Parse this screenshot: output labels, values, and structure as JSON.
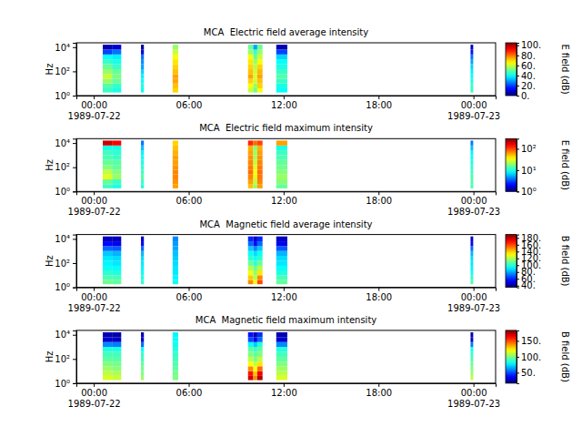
{
  "chart_data": [
    {
      "type": "heatmap",
      "title": "MCA  Electric field average intensity",
      "y_label": "Hz",
      "log": "y",
      "xlim": [
        "1989-07-21T22:54",
        "1989-07-23T01:24"
      ],
      "xticks": [
        {
          "value": "1989-07-22T00:00",
          "label": "00:00\n1989-07-22"
        },
        {
          "value": "1989-07-22T06:00",
          "label": "06:00"
        },
        {
          "value": "1989-07-22T12:00",
          "label": "12:00"
        },
        {
          "value": "1989-07-22T18:00",
          "label": "18:00"
        },
        {
          "value": "1989-07-23T00:00",
          "label": "00:00\n1989-07-23"
        }
      ],
      "ylim": [
        1,
        23000
      ],
      "yticks": [
        {
          "value": 1,
          "label": "10⁰"
        },
        {
          "value": 100,
          "label": "10²"
        },
        {
          "value": 10000,
          "label": "10⁴"
        }
      ],
      "x_start": [
        "1989-07-22T00:34",
        "1989-07-22T01:09",
        "1989-07-22T02:59",
        "1989-07-22T04:59",
        "1989-07-22T09:45",
        "1989-07-22T10:05",
        "1989-07-22T10:20",
        "1989-07-22T11:32",
        "1989-07-22T23:49"
      ],
      "x_end": [
        "1989-07-22T01:09",
        "1989-07-22T01:44",
        "1989-07-22T03:10",
        "1989-07-22T05:20",
        "1989-07-22T10:05",
        "1989-07-22T10:20",
        "1989-07-22T10:40",
        "1989-07-22T12:14",
        "1989-07-22T23:59"
      ],
      "y_edges": [
        1.8,
        4,
        10,
        25,
        60,
        150,
        400,
        1000,
        2500,
        6300,
        16000
      ],
      "cells": [
        [
          45,
          48,
          55,
          60,
          55,
          50,
          45,
          40,
          20,
          5
        ],
        [
          42,
          45,
          50,
          52,
          50,
          45,
          42,
          38,
          25,
          8
        ],
        [
          40,
          42,
          40,
          38,
          35,
          30,
          28,
          25,
          10,
          3
        ],
        [
          70,
          72,
          75,
          75,
          72,
          70,
          68,
          65,
          60,
          55
        ],
        [
          60,
          65,
          70,
          75,
          72,
          70,
          68,
          65,
          55,
          50
        ],
        [
          50,
          55,
          60,
          62,
          60,
          58,
          55,
          50,
          45,
          30
        ],
        [
          65,
          70,
          72,
          75,
          73,
          70,
          65,
          60,
          55,
          50
        ],
        [
          40,
          42,
          45,
          48,
          45,
          42,
          40,
          35,
          20,
          5
        ],
        [
          45,
          45,
          42,
          40,
          38,
          35,
          30,
          25,
          15,
          5
        ]
      ],
      "colorbar": {
        "label": "E field (dB)",
        "range": [
          0,
          105
        ],
        "ticks": [
          {
            "value": 0,
            "label": "0."
          },
          {
            "value": 20,
            "label": "20."
          },
          {
            "value": 40,
            "label": "40."
          },
          {
            "value": 60,
            "label": "60."
          },
          {
            "value": 80,
            "label": "80."
          },
          {
            "value": 100,
            "label": "100."
          }
        ]
      }
    },
    {
      "type": "heatmap",
      "title": "MCA  Electric field maximum intensity",
      "y_label": "Hz",
      "log": "y",
      "xlim": [
        "1989-07-21T22:54",
        "1989-07-23T01:24"
      ],
      "xticks": [
        {
          "value": "1989-07-22T00:00",
          "label": "00:00\n1989-07-22"
        },
        {
          "value": "1989-07-22T06:00",
          "label": "06:00"
        },
        {
          "value": "1989-07-22T12:00",
          "label": "12:00"
        },
        {
          "value": "1989-07-22T18:00",
          "label": "18:00"
        },
        {
          "value": "1989-07-23T00:00",
          "label": "00:00\n1989-07-23"
        }
      ],
      "ylim": [
        1,
        23000
      ],
      "yticks": [
        {
          "value": 1,
          "label": "10⁰"
        },
        {
          "value": 100,
          "label": "10²"
        },
        {
          "value": 10000,
          "label": "10⁴"
        }
      ],
      "x_start": [
        "1989-07-22T00:34",
        "1989-07-22T01:09",
        "1989-07-22T02:59",
        "1989-07-22T04:59",
        "1989-07-22T09:45",
        "1989-07-22T10:05",
        "1989-07-22T10:20",
        "1989-07-22T11:32",
        "1989-07-22T23:49"
      ],
      "x_end": [
        "1989-07-22T01:09",
        "1989-07-22T01:44",
        "1989-07-22T03:10",
        "1989-07-22T05:20",
        "1989-07-22T10:05",
        "1989-07-22T10:20",
        "1989-07-22T10:40",
        "1989-07-22T12:14",
        "1989-07-22T23:59"
      ],
      "y_edges": [
        1.8,
        4,
        10,
        25,
        60,
        150,
        400,
        1000,
        2500,
        6300,
        16000
      ],
      "cells": [
        [
          12,
          15,
          30,
          25,
          18,
          15,
          13,
          12,
          10,
          200
        ],
        [
          10,
          12,
          20,
          18,
          15,
          14,
          12,
          11,
          10,
          150
        ],
        [
          10,
          12,
          14,
          12,
          11,
          10,
          9,
          8,
          6,
          4
        ],
        [
          60,
          65,
          70,
          70,
          65,
          60,
          60,
          55,
          50,
          45
        ],
        [
          50,
          60,
          70,
          80,
          75,
          70,
          65,
          60,
          55,
          120
        ],
        [
          20,
          25,
          30,
          35,
          30,
          25,
          22,
          20,
          18,
          80
        ],
        [
          60,
          70,
          75,
          80,
          75,
          70,
          65,
          60,
          55,
          100
        ],
        [
          15,
          18,
          20,
          18,
          16,
          15,
          13,
          12,
          10,
          60
        ],
        [
          12,
          14,
          13,
          12,
          11,
          10,
          9,
          8,
          6,
          4
        ]
      ],
      "colorbar": {
        "label": "E field (dB)",
        "log": true,
        "range": [
          1,
          300
        ],
        "ticks": [
          {
            "value": 1,
            "label": "10⁰"
          },
          {
            "value": 10,
            "label": "10¹"
          },
          {
            "value": 100,
            "label": "10²"
          }
        ]
      }
    },
    {
      "type": "heatmap",
      "title": "MCA  Magnetic field average intensity",
      "y_label": "Hz",
      "log": "y",
      "xlim": [
        "1989-07-21T22:54",
        "1989-07-23T01:24"
      ],
      "xticks": [
        {
          "value": "1989-07-22T00:00",
          "label": "00:00\n1989-07-22"
        },
        {
          "value": "1989-07-22T06:00",
          "label": "06:00"
        },
        {
          "value": "1989-07-22T12:00",
          "label": "12:00"
        },
        {
          "value": "1989-07-22T18:00",
          "label": "18:00"
        },
        {
          "value": "1989-07-23T00:00",
          "label": "00:00\n1989-07-23"
        }
      ],
      "ylim": [
        1,
        23000
      ],
      "yticks": [
        {
          "value": 1,
          "label": "10⁰"
        },
        {
          "value": 100,
          "label": "10²"
        },
        {
          "value": 10000,
          "label": "10⁴"
        }
      ],
      "x_start": [
        "1989-07-22T00:34",
        "1989-07-22T01:09",
        "1989-07-22T02:59",
        "1989-07-22T04:59",
        "1989-07-22T09:45",
        "1989-07-22T10:05",
        "1989-07-22T10:20",
        "1989-07-22T11:32",
        "1989-07-22T23:49"
      ],
      "x_end": [
        "1989-07-22T01:09",
        "1989-07-22T01:44",
        "1989-07-22T03:10",
        "1989-07-22T05:20",
        "1989-07-22T10:05",
        "1989-07-22T10:20",
        "1989-07-22T10:40",
        "1989-07-22T12:14",
        "1989-07-22T23:59"
      ],
      "y_edges": [
        1.8,
        4,
        10,
        25,
        60,
        150,
        400,
        1000,
        2500,
        6300,
        16000
      ],
      "cells": [
        [
          110,
          105,
          100,
          95,
          92,
          90,
          85,
          70,
          55,
          45
        ],
        [
          108,
          104,
          98,
          94,
          90,
          88,
          82,
          68,
          52,
          44
        ],
        [
          100,
          98,
          95,
          92,
          90,
          88,
          82,
          70,
          55,
          45
        ],
        [
          95,
          92,
          90,
          90,
          88,
          86,
          84,
          80,
          78,
          75
        ],
        [
          150,
          140,
          130,
          120,
          110,
          100,
          95,
          85,
          70,
          60
        ],
        [
          130,
          120,
          115,
          110,
          100,
          95,
          88,
          75,
          55,
          45
        ],
        [
          160,
          150,
          135,
          120,
          110,
          100,
          95,
          85,
          70,
          60
        ],
        [
          108,
          104,
          98,
          94,
          90,
          88,
          82,
          68,
          52,
          45
        ],
        [
          105,
          100,
          96,
          92,
          90,
          88,
          82,
          70,
          55,
          45
        ]
      ],
      "colorbar": {
        "label": "B field (dB)",
        "range": [
          35,
          190
        ],
        "ticks": [
          {
            "value": 40,
            "label": "40."
          },
          {
            "value": 60,
            "label": "60."
          },
          {
            "value": 80,
            "label": "80."
          },
          {
            "value": 100,
            "label": "100."
          },
          {
            "value": 120,
            "label": "120."
          },
          {
            "value": 140,
            "label": "140."
          },
          {
            "value": 160,
            "label": "160."
          },
          {
            "value": 180,
            "label": "180."
          }
        ]
      }
    },
    {
      "type": "heatmap",
      "title": "MCA  Magnetic field maximum intensity",
      "y_label": "Hz",
      "log": "y",
      "xlim": [
        "1989-07-21T22:54",
        "1989-07-23T01:24"
      ],
      "xticks": [
        {
          "value": "1989-07-22T00:00",
          "label": "00:00\n1989-07-22"
        },
        {
          "value": "1989-07-22T06:00",
          "label": "06:00"
        },
        {
          "value": "1989-07-22T12:00",
          "label": "12:00"
        },
        {
          "value": "1989-07-22T18:00",
          "label": "18:00"
        },
        {
          "value": "1989-07-23T00:00",
          "label": "00:00\n1989-07-23"
        }
      ],
      "ylim": [
        1,
        23000
      ],
      "yticks": [
        {
          "value": 1,
          "label": "10⁰"
        },
        {
          "value": 100,
          "label": "10²"
        },
        {
          "value": 10000,
          "label": "10⁴"
        }
      ],
      "x_start": [
        "1989-07-22T00:34",
        "1989-07-22T01:09",
        "1989-07-22T02:59",
        "1989-07-22T04:59",
        "1989-07-22T09:45",
        "1989-07-22T10:05",
        "1989-07-22T10:20",
        "1989-07-22T11:32",
        "1989-07-22T23:49"
      ],
      "x_end": [
        "1989-07-22T01:09",
        "1989-07-22T01:44",
        "1989-07-22T03:10",
        "1989-07-22T05:20",
        "1989-07-22T10:05",
        "1989-07-22T10:20",
        "1989-07-22T10:40",
        "1989-07-22T12:14",
        "1989-07-22T23:59"
      ],
      "y_edges": [
        1.8,
        4,
        10,
        25,
        60,
        150,
        400,
        1000,
        2500,
        6300,
        16000
      ],
      "cells": [
        [
          115,
          110,
          105,
          100,
          95,
          90,
          85,
          60,
          30,
          25
        ],
        [
          112,
          108,
          102,
          98,
          94,
          90,
          84,
          58,
          28,
          24
        ],
        [
          105,
          100,
          98,
          95,
          90,
          88,
          80,
          55,
          30,
          25
        ],
        [
          100,
          98,
          95,
          92,
          90,
          88,
          85,
          82,
          80,
          78
        ],
        [
          170,
          160,
          140,
          120,
          110,
          100,
          95,
          80,
          50,
          40
        ],
        [
          140,
          130,
          120,
          110,
          100,
          95,
          88,
          70,
          35,
          25
        ],
        [
          175,
          165,
          145,
          125,
          110,
          100,
          95,
          85,
          55,
          45
        ],
        [
          115,
          110,
          105,
          100,
          95,
          90,
          85,
          60,
          30,
          25
        ],
        [
          110,
          105,
          100,
          96,
          92,
          88,
          82,
          58,
          28,
          24
        ]
      ],
      "colorbar": {
        "label": "B field (dB)",
        "range": [
          17,
          183
        ],
        "ticks": [
          {
            "value": 50,
            "label": "50."
          },
          {
            "value": 100,
            "label": "100."
          },
          {
            "value": 150,
            "label": "150."
          }
        ]
      }
    }
  ]
}
